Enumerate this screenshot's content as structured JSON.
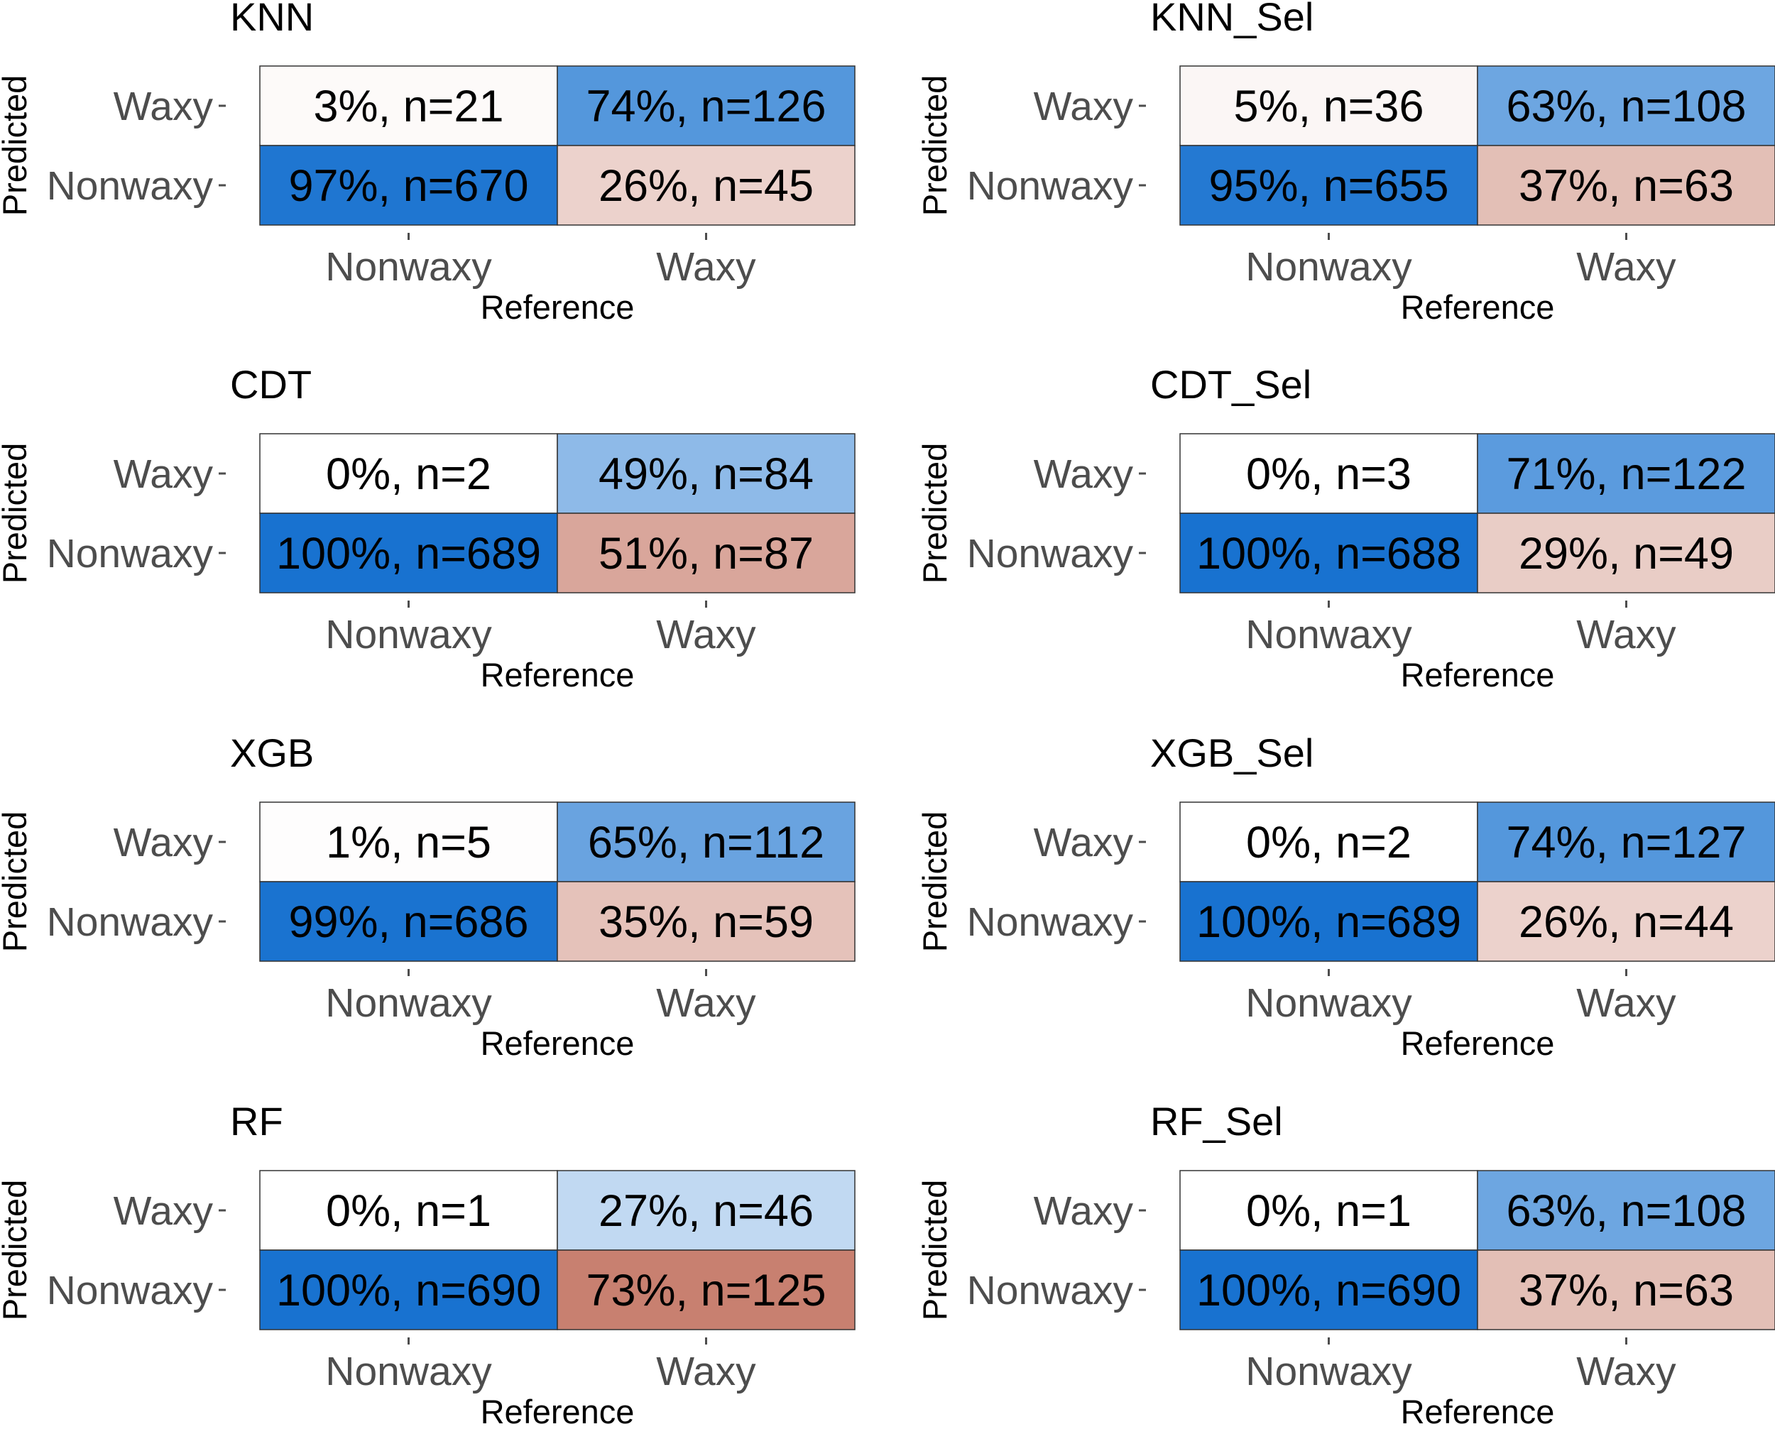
{
  "chart_data": [
    {
      "type": "heatmap",
      "title": "KNN",
      "xlabel": "Reference",
      "ylabel": "Predicted",
      "x_categories": [
        "Nonwaxy",
        "Waxy"
      ],
      "y_categories": [
        "Waxy",
        "Nonwaxy"
      ],
      "cells": [
        {
          "predicted": "Waxy",
          "reference": "Nonwaxy",
          "pct": 3,
          "n": 21,
          "label": "3%, n=21"
        },
        {
          "predicted": "Waxy",
          "reference": "Waxy",
          "pct": 74,
          "n": 126,
          "label": "74%, n=126"
        },
        {
          "predicted": "Nonwaxy",
          "reference": "Nonwaxy",
          "pct": 97,
          "n": 670,
          "label": "97%, n=670"
        },
        {
          "predicted": "Nonwaxy",
          "reference": "Waxy",
          "pct": 26,
          "n": 45,
          "label": "26%, n=45"
        }
      ]
    },
    {
      "type": "heatmap",
      "title": "KNN_Sel",
      "xlabel": "Reference",
      "ylabel": "Predicted",
      "x_categories": [
        "Nonwaxy",
        "Waxy"
      ],
      "y_categories": [
        "Waxy",
        "Nonwaxy"
      ],
      "cells": [
        {
          "predicted": "Waxy",
          "reference": "Nonwaxy",
          "pct": 5,
          "n": 36,
          "label": "5%, n=36"
        },
        {
          "predicted": "Waxy",
          "reference": "Waxy",
          "pct": 63,
          "n": 108,
          "label": "63%, n=108"
        },
        {
          "predicted": "Nonwaxy",
          "reference": "Nonwaxy",
          "pct": 95,
          "n": 655,
          "label": "95%, n=655"
        },
        {
          "predicted": "Nonwaxy",
          "reference": "Waxy",
          "pct": 37,
          "n": 63,
          "label": "37%, n=63"
        }
      ]
    },
    {
      "type": "heatmap",
      "title": "CDT",
      "xlabel": "Reference",
      "ylabel": "Predicted",
      "x_categories": [
        "Nonwaxy",
        "Waxy"
      ],
      "y_categories": [
        "Waxy",
        "Nonwaxy"
      ],
      "cells": [
        {
          "predicted": "Waxy",
          "reference": "Nonwaxy",
          "pct": 0,
          "n": 2,
          "label": "0%, n=2"
        },
        {
          "predicted": "Waxy",
          "reference": "Waxy",
          "pct": 49,
          "n": 84,
          "label": "49%, n=84"
        },
        {
          "predicted": "Nonwaxy",
          "reference": "Nonwaxy",
          "pct": 100,
          "n": 689,
          "label": "100%, n=689"
        },
        {
          "predicted": "Nonwaxy",
          "reference": "Waxy",
          "pct": 51,
          "n": 87,
          "label": "51%, n=87"
        }
      ]
    },
    {
      "type": "heatmap",
      "title": "CDT_Sel",
      "xlabel": "Reference",
      "ylabel": "Predicted",
      "x_categories": [
        "Nonwaxy",
        "Waxy"
      ],
      "y_categories": [
        "Waxy",
        "Nonwaxy"
      ],
      "cells": [
        {
          "predicted": "Waxy",
          "reference": "Nonwaxy",
          "pct": 0,
          "n": 3,
          "label": "0%, n=3"
        },
        {
          "predicted": "Waxy",
          "reference": "Waxy",
          "pct": 71,
          "n": 122,
          "label": "71%, n=122"
        },
        {
          "predicted": "Nonwaxy",
          "reference": "Nonwaxy",
          "pct": 100,
          "n": 688,
          "label": "100%, n=688"
        },
        {
          "predicted": "Nonwaxy",
          "reference": "Waxy",
          "pct": 29,
          "n": 49,
          "label": "29%, n=49"
        }
      ]
    },
    {
      "type": "heatmap",
      "title": "XGB",
      "xlabel": "Reference",
      "ylabel": "Predicted",
      "x_categories": [
        "Nonwaxy",
        "Waxy"
      ],
      "y_categories": [
        "Waxy",
        "Nonwaxy"
      ],
      "cells": [
        {
          "predicted": "Waxy",
          "reference": "Nonwaxy",
          "pct": 1,
          "n": 5,
          "label": "1%, n=5"
        },
        {
          "predicted": "Waxy",
          "reference": "Waxy",
          "pct": 65,
          "n": 112,
          "label": "65%, n=112"
        },
        {
          "predicted": "Nonwaxy",
          "reference": "Nonwaxy",
          "pct": 99,
          "n": 686,
          "label": "99%, n=686"
        },
        {
          "predicted": "Nonwaxy",
          "reference": "Waxy",
          "pct": 35,
          "n": 59,
          "label": "35%, n=59"
        }
      ]
    },
    {
      "type": "heatmap",
      "title": "XGB_Sel",
      "xlabel": "Reference",
      "ylabel": "Predicted",
      "x_categories": [
        "Nonwaxy",
        "Waxy"
      ],
      "y_categories": [
        "Waxy",
        "Nonwaxy"
      ],
      "cells": [
        {
          "predicted": "Waxy",
          "reference": "Nonwaxy",
          "pct": 0,
          "n": 2,
          "label": "0%, n=2"
        },
        {
          "predicted": "Waxy",
          "reference": "Waxy",
          "pct": 74,
          "n": 127,
          "label": "74%, n=127"
        },
        {
          "predicted": "Nonwaxy",
          "reference": "Nonwaxy",
          "pct": 100,
          "n": 689,
          "label": "100%, n=689"
        },
        {
          "predicted": "Nonwaxy",
          "reference": "Waxy",
          "pct": 26,
          "n": 44,
          "label": "26%, n=44"
        }
      ]
    },
    {
      "type": "heatmap",
      "title": "RF",
      "xlabel": "Reference",
      "ylabel": "Predicted",
      "x_categories": [
        "Nonwaxy",
        "Waxy"
      ],
      "y_categories": [
        "Waxy",
        "Nonwaxy"
      ],
      "cells": [
        {
          "predicted": "Waxy",
          "reference": "Nonwaxy",
          "pct": 0,
          "n": 1,
          "label": "0%, n=1"
        },
        {
          "predicted": "Waxy",
          "reference": "Waxy",
          "pct": 27,
          "n": 46,
          "label": "27%, n=46"
        },
        {
          "predicted": "Nonwaxy",
          "reference": "Nonwaxy",
          "pct": 100,
          "n": 690,
          "label": "100%, n=690"
        },
        {
          "predicted": "Nonwaxy",
          "reference": "Waxy",
          "pct": 73,
          "n": 125,
          "label": "73%, n=125"
        }
      ]
    },
    {
      "type": "heatmap",
      "title": "RF_Sel",
      "xlabel": "Reference",
      "ylabel": "Predicted",
      "x_categories": [
        "Nonwaxy",
        "Waxy"
      ],
      "y_categories": [
        "Waxy",
        "Nonwaxy"
      ],
      "cells": [
        {
          "predicted": "Waxy",
          "reference": "Nonwaxy",
          "pct": 0,
          "n": 1,
          "label": "0%, n=1"
        },
        {
          "predicted": "Waxy",
          "reference": "Waxy",
          "pct": 63,
          "n": 108,
          "label": "63%, n=108"
        },
        {
          "predicted": "Nonwaxy",
          "reference": "Nonwaxy",
          "pct": 100,
          "n": 690,
          "label": "100%, n=690"
        },
        {
          "predicted": "Nonwaxy",
          "reference": "Waxy",
          "pct": 37,
          "n": 63,
          "label": "37%, n=63"
        }
      ]
    }
  ],
  "colors": {
    "correct_high": "#1872d0",
    "error_high": "#b4513b",
    "low": "#ffffff",
    "border": "#333333",
    "tick_text": "#4d4d4d"
  }
}
